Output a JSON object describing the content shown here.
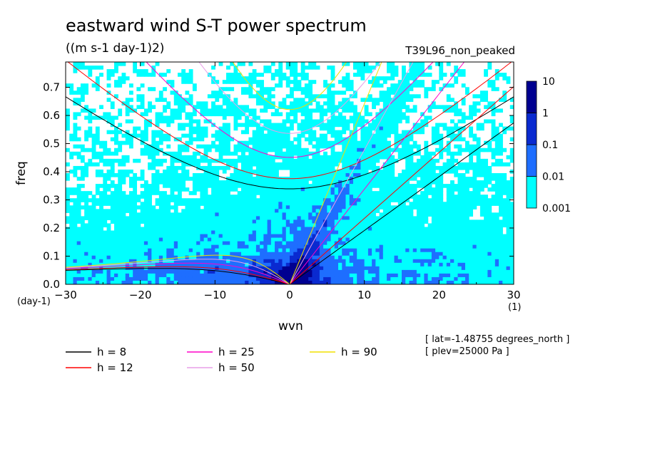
{
  "chart_data": {
    "type": "heatmap",
    "title": "eastward wind S-T power spectrum",
    "units": "((m s-1 day-1)2)",
    "dataset": "T39L96_non_peaked",
    "xlabel": "wvn",
    "ylabel": "freq",
    "x_unit": "(1)",
    "y_unit": "(day-1)",
    "xlim": [
      -30,
      30
    ],
    "ylim": [
      0,
      0.79
    ],
    "x_ticks": [
      -30,
      -20,
      -10,
      0,
      10,
      20,
      30
    ],
    "y_ticks": [
      0,
      0.1,
      0.2,
      0.3,
      0.4,
      0.5,
      0.6,
      0.7
    ],
    "colorbar": {
      "levels": [
        "0.001",
        "0.01",
        "0.1",
        "1",
        "10"
      ],
      "colors": [
        "#00ffff",
        "#1e6eff",
        "#0a2ad0",
        "#000090",
        "#3a1aa0"
      ]
    },
    "equivalent_depths": [
      {
        "name": "h =  8",
        "h": 8,
        "color": "#000000"
      },
      {
        "name": "h = 12",
        "h": 12,
        "color": "#ff0000"
      },
      {
        "name": "h = 25",
        "h": 25,
        "color": "#ff00c8"
      },
      {
        "name": "h = 50",
        "h": 50,
        "color": "#e89ee8"
      },
      {
        "name": "h = 90",
        "h": 90,
        "color": "#f0e000"
      }
    ],
    "annotations": [
      "[ lat=-1.48755 degrees_north ]",
      "[ plev=25000 Pa ]"
    ],
    "grid": false,
    "legend_position": "bottom"
  }
}
